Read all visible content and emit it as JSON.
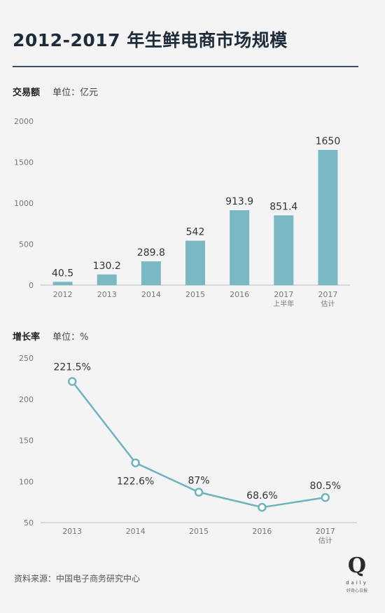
{
  "title": "2012-2017 年生鲜电商市场规模",
  "source": "资料来源：中国电子商务研究中心",
  "logo": {
    "mark": "Q",
    "word": "daily",
    "sub": "好奇心日报"
  },
  "colors": {
    "bar": "#7ab8c4",
    "line": "#6db4bf",
    "axis": "#bbbbbb",
    "text": "#333333",
    "tick": "#777777"
  },
  "chart_data": [
    {
      "type": "bar",
      "label": "交易额",
      "unit": "单位：亿元",
      "categories": [
        [
          "2012"
        ],
        [
          "2013"
        ],
        [
          "2014"
        ],
        [
          "2015"
        ],
        [
          "2016"
        ],
        [
          "2017",
          "上半年"
        ],
        [
          "2017",
          "估计"
        ]
      ],
      "values": [
        40.5,
        130.2,
        289.8,
        542,
        913.9,
        851.4,
        1650
      ],
      "value_labels": [
        "40.5",
        "130.2",
        "289.8",
        "542",
        "913.9",
        "851.4",
        "1650"
      ],
      "yticks": [
        0,
        500,
        1000,
        1500,
        2000
      ],
      "ylim": [
        0,
        2000
      ],
      "grid": false
    },
    {
      "type": "line",
      "label": "增长率",
      "unit": "单位：%",
      "categories": [
        [
          "2013"
        ],
        [
          "2014"
        ],
        [
          "2015"
        ],
        [
          "2016"
        ],
        [
          "2017",
          "估计"
        ]
      ],
      "values": [
        221.5,
        122.6,
        87,
        68.6,
        80.5
      ],
      "value_labels": [
        "221.5%",
        "122.6%",
        "87%",
        "68.6%",
        "80.5%"
      ],
      "yticks": [
        50,
        100,
        150,
        200,
        250
      ],
      "ylim": [
        50,
        250
      ],
      "grid": false
    }
  ]
}
